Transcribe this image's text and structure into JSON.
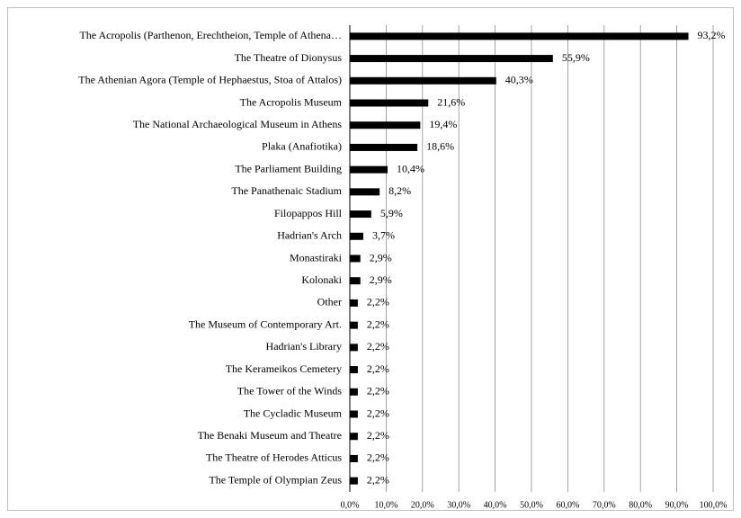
{
  "chart_data": {
    "type": "bar",
    "orientation": "horizontal",
    "categories": [
      "The Acropolis (Parthenon, Erechtheion, Temple of Athena…",
      "The Theatre of Dionysus",
      "The Athenian Agora (Temple of Hephaestus, Stoa of Attalos)",
      "The Acropolis Museum",
      "The National Archaeological Museum in Athens",
      "Plaka (Anafiotika)",
      "The Parliament Building",
      "The Panathenaic Stadium",
      "Filopappos Hill",
      "Hadrian's Arch",
      "Monastiraki",
      "Kolonaki",
      "Other",
      "The Museum of Contemporary Art.",
      "Hadrian's Library",
      "The Kerameikos Cemetery",
      "The Tower of the Winds",
      "The Cycladic Museum",
      "The Benaki Museum and Theatre",
      "The Theatre of Herodes Atticus",
      "The Temple of Olympian Zeus"
    ],
    "values": [
      93.2,
      55.9,
      40.3,
      21.6,
      19.4,
      18.6,
      10.4,
      8.2,
      5.9,
      3.7,
      2.9,
      2.9,
      2.2,
      2.2,
      2.2,
      2.2,
      2.2,
      2.2,
      2.2,
      2.2,
      2.2
    ],
    "value_labels": [
      "93,2%",
      "55,9%",
      "40,3%",
      "21,6%",
      "19,4%",
      "18,6%",
      "10,4%",
      "8,2%",
      "5,9%",
      "3,7%",
      "2,9%",
      "2,9%",
      "2,2%",
      "2,2%",
      "2,2%",
      "2,2%",
      "2,2%",
      "2,2%",
      "2,2%",
      "2,2%",
      "2,2%"
    ],
    "color": "#000000",
    "xlim": [
      0,
      100
    ],
    "xticks": [
      {
        "value": 0,
        "label": "0,0%"
      },
      {
        "value": 10,
        "label": "10,0%"
      },
      {
        "value": 20,
        "label": "20,0%"
      },
      {
        "value": 30,
        "label": "30,0%"
      },
      {
        "value": 40,
        "label": "40,0%"
      },
      {
        "value": 50,
        "label": "50,0%"
      },
      {
        "value": 60,
        "label": "60,0%"
      },
      {
        "value": 70,
        "label": "70,0%"
      },
      {
        "value": 80,
        "label": "80,0%"
      },
      {
        "value": 90,
        "label": "90,0%"
      },
      {
        "value": 100,
        "label": "100,0%"
      }
    ],
    "grid": true
  }
}
